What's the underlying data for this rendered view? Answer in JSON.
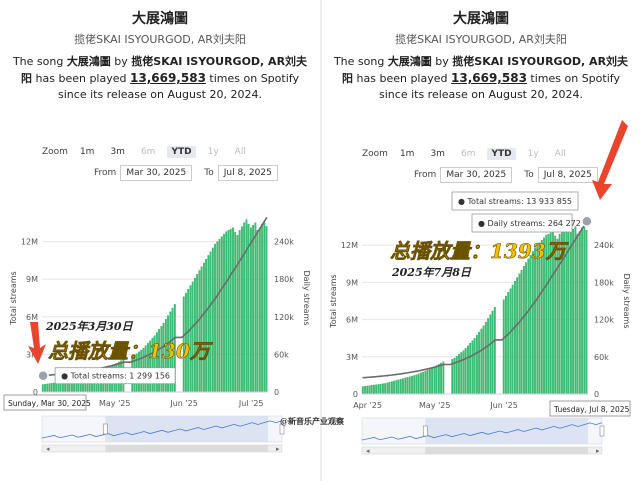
{
  "panels": [
    {
      "title": "大展鴻圖",
      "artists": "揽佬SKAI ISYOURGOD, AR刘夫阳",
      "desc_pre": "The song ",
      "desc_song": "大展鴻圖",
      "desc_by": " by ",
      "desc_artists": "揽佬SKAI ISYOURGOD, AR刘夫阳",
      "desc_mid": " has been played ",
      "desc_count": "13,669,583",
      "desc_post": " times on Spotify since its release on August 20, 2024.",
      "zoom_label": "Zoom",
      "zoom_options": [
        "1m",
        "3m",
        "6m",
        "YTD",
        "1y",
        "All"
      ],
      "zoom_active": "YTD",
      "from_label": "From",
      "from_date": "Mar 30, 2025",
      "to_label": "To",
      "to_date": "Jul 8, 2025",
      "tooltip_total": "Total streams: 1 299 156",
      "hover_date": "Sunday, Mar 30, 2025",
      "annotation_big": "总播放量：130万",
      "annotation_date": "2025年3月30日",
      "arrow_color": "#e8452c",
      "watermark": ""
    },
    {
      "title": "大展鴻圖",
      "artists": "揽佬SKAI ISYOURGOD, AR刘夫阳",
      "desc_pre": "The song ",
      "desc_song": "大展鴻圖",
      "desc_by": " by ",
      "desc_artists": "揽佬SKAI ISYOURGOD, AR刘夫阳",
      "desc_mid": " has been played ",
      "desc_count": "13,669,583",
      "desc_post": " times on Spotify since its release on August 20, 2024.",
      "zoom_label": "Zoom",
      "zoom_options": [
        "1m",
        "3m",
        "6m",
        "YTD",
        "1y",
        "All"
      ],
      "zoom_active": "YTD",
      "from_label": "From",
      "from_date": "Mar 30, 2025",
      "to_label": "To",
      "to_date": "Jul 8, 2025",
      "tooltip_total": "Total streams: 13 933 855",
      "tooltip_daily": "Daily streams: 264 272",
      "hover_date": "Tuesday, Jul 8, 2025",
      "annotation_big": "总播放量：1393万",
      "annotation_date": "2025年7月8日",
      "arrow_color": "#e8452c",
      "watermark": "@新音乐产业观察"
    }
  ],
  "chart_data": {
    "type": "bar",
    "y_left_label": "Total streams",
    "y_right_label": "Daily streams",
    "y_left_ticks": [
      "0",
      "3M",
      "6M",
      "9M",
      "12M"
    ],
    "y_right_ticks": [
      "0",
      "60k",
      "120k",
      "180k",
      "240k"
    ],
    "y_left_range": [
      0,
      15000000
    ],
    "y_right_range": [
      0,
      300000
    ],
    "x_ticks": [
      "Apr '25",
      "May '25",
      "Jun '25",
      "Jul '25"
    ],
    "start_date": "2025-03-30",
    "end_date": "2025-07-08",
    "colors": {
      "bars": "#3cc073",
      "bar_edge": "#2aa55e",
      "line": "#6b6b6b",
      "navigator": "#d6def0"
    },
    "total_streams_start": 1299156,
    "total_streams_end": 13933855,
    "daily_streams_end": 264272,
    "daily_streams": [
      12000,
      12500,
      13000,
      13500,
      14000,
      14500,
      15000,
      15500,
      16000,
      16500,
      17000,
      18000,
      19000,
      20000,
      21000,
      22000,
      23000,
      24000,
      25000,
      26000,
      27000,
      28000,
      29000,
      30000,
      31000,
      32500,
      34000,
      35500,
      37000,
      38500,
      40000,
      42000,
      44000,
      46000,
      48000,
      50000,
      52000,
      0,
      0,
      0,
      56000,
      58000,
      61000,
      64000,
      67000,
      70000,
      74000,
      78000,
      82000,
      86000,
      90000,
      95000,
      100000,
      105000,
      110000,
      116000,
      122000,
      128000,
      134000,
      140000,
      0,
      0,
      0,
      152000,
      158000,
      164000,
      170000,
      176000,
      182000,
      188000,
      194000,
      200000,
      206000,
      212000,
      218000,
      224000,
      230000,
      236000,
      240000,
      244000,
      248000,
      252000,
      256000,
      258000,
      260000,
      262000,
      255000,
      250000,
      258000,
      264000,
      270000,
      275000,
      268000,
      262000,
      266000,
      270000,
      258000,
      262000,
      268000,
      270000,
      264272
    ]
  }
}
